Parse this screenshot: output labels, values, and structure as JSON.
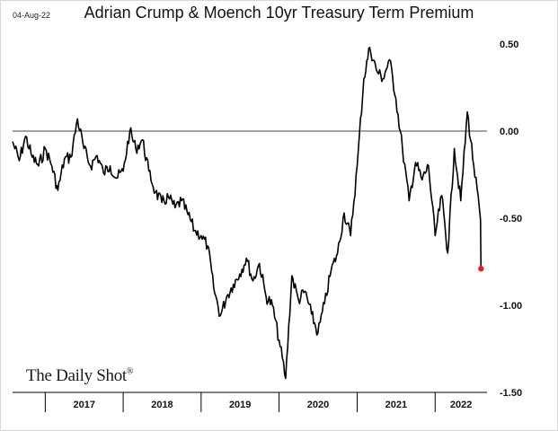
{
  "chart_data": {
    "type": "line",
    "title": "Adrian Crump & Moench 10yr Treasury Term Premium",
    "date_stamp": "04-Aug-22",
    "source_brand": "The Daily Shot",
    "source_brand_mark": "®",
    "xlabel": "",
    "ylabel": "",
    "ylim": [
      -1.5,
      0.5
    ],
    "yticks": [
      0.5,
      0.0,
      -0.5,
      -1.0,
      -1.5
    ],
    "ytick_labels": [
      "0.50",
      "0.00",
      "-0.50",
      "-1.00",
      "-1.50"
    ],
    "xticks": [
      "2017",
      "2018",
      "2019",
      "2020",
      "2021",
      "2022"
    ],
    "x_year_starts": [
      "2017-01-01",
      "2018-01-01",
      "2019-01-01",
      "2020-01-01",
      "2021-01-01",
      "2022-01-01",
      "2023-01-01"
    ],
    "xlim": [
      "2016-08-01",
      "2022-09-01"
    ],
    "reference_line": 0.0,
    "line_color": "#000000",
    "endpoint_color": "#d62728",
    "grid": false,
    "series": [
      {
        "points": [
          [
            "2016-08-01",
            -0.06
          ],
          [
            "2016-09-01",
            -0.17
          ],
          [
            "2016-10-01",
            -0.03
          ],
          [
            "2016-11-01",
            -0.15
          ],
          [
            "2016-12-01",
            -0.2
          ],
          [
            "2017-01-01",
            -0.1
          ],
          [
            "2017-02-01",
            -0.2
          ],
          [
            "2017-03-01",
            -0.34
          ],
          [
            "2017-04-01",
            -0.16
          ],
          [
            "2017-05-01",
            -0.15
          ],
          [
            "2017-06-01",
            0.07
          ],
          [
            "2017-07-01",
            -0.1
          ],
          [
            "2017-08-01",
            -0.2
          ],
          [
            "2017-09-01",
            -0.14
          ],
          [
            "2017-10-01",
            -0.24
          ],
          [
            "2017-11-01",
            -0.2
          ],
          [
            "2017-12-01",
            -0.27
          ],
          [
            "2018-01-01",
            -0.23
          ],
          [
            "2018-02-01",
            0.0
          ],
          [
            "2018-03-01",
            -0.1
          ],
          [
            "2018-04-01",
            -0.05
          ],
          [
            "2018-05-01",
            -0.23
          ],
          [
            "2018-06-01",
            -0.35
          ],
          [
            "2018-07-01",
            -0.41
          ],
          [
            "2018-08-01",
            -0.38
          ],
          [
            "2018-09-01",
            -0.44
          ],
          [
            "2018-10-01",
            -0.4
          ],
          [
            "2018-11-01",
            -0.48
          ],
          [
            "2018-12-01",
            -0.57
          ],
          [
            "2019-01-01",
            -0.6
          ],
          [
            "2019-02-01",
            -0.66
          ],
          [
            "2019-03-01",
            -0.9
          ],
          [
            "2019-04-01",
            -1.06
          ],
          [
            "2019-05-01",
            -0.95
          ],
          [
            "2019-06-01",
            -0.88
          ],
          [
            "2019-07-01",
            -0.82
          ],
          [
            "2019-08-01",
            -0.73
          ],
          [
            "2019-09-01",
            -0.86
          ],
          [
            "2019-10-01",
            -0.76
          ],
          [
            "2019-11-01",
            -0.95
          ],
          [
            "2019-12-01",
            -1.0
          ],
          [
            "2020-01-01",
            -1.2
          ],
          [
            "2020-02-01",
            -1.42
          ],
          [
            "2020-03-01",
            -0.83
          ],
          [
            "2020-04-01",
            -0.97
          ],
          [
            "2020-05-01",
            -0.92
          ],
          [
            "2020-06-01",
            -1.05
          ],
          [
            "2020-07-01",
            -1.16
          ],
          [
            "2020-08-01",
            -0.99
          ],
          [
            "2020-09-01",
            -0.8
          ],
          [
            "2020-10-01",
            -0.7
          ],
          [
            "2020-11-01",
            -0.47
          ],
          [
            "2020-12-01",
            -0.6
          ],
          [
            "2021-01-01",
            -0.2
          ],
          [
            "2021-02-01",
            0.3
          ],
          [
            "2021-03-01",
            0.48
          ],
          [
            "2021-04-01",
            0.35
          ],
          [
            "2021-05-01",
            0.3
          ],
          [
            "2021-06-01",
            0.41
          ],
          [
            "2021-07-01",
            0.19
          ],
          [
            "2021-08-01",
            -0.1
          ],
          [
            "2021-09-01",
            -0.4
          ],
          [
            "2021-10-01",
            -0.18
          ],
          [
            "2021-11-01",
            -0.28
          ],
          [
            "2021-12-01",
            -0.2
          ],
          [
            "2022-01-01",
            -0.6
          ],
          [
            "2022-02-01",
            -0.37
          ],
          [
            "2022-03-01",
            -0.7
          ],
          [
            "2022-04-01",
            -0.1
          ],
          [
            "2022-05-01",
            -0.4
          ],
          [
            "2022-06-01",
            0.11
          ],
          [
            "2022-07-01",
            -0.2
          ],
          [
            "2022-08-01",
            -0.5
          ],
          [
            "2022-08-04",
            -0.79
          ]
        ]
      }
    ]
  }
}
